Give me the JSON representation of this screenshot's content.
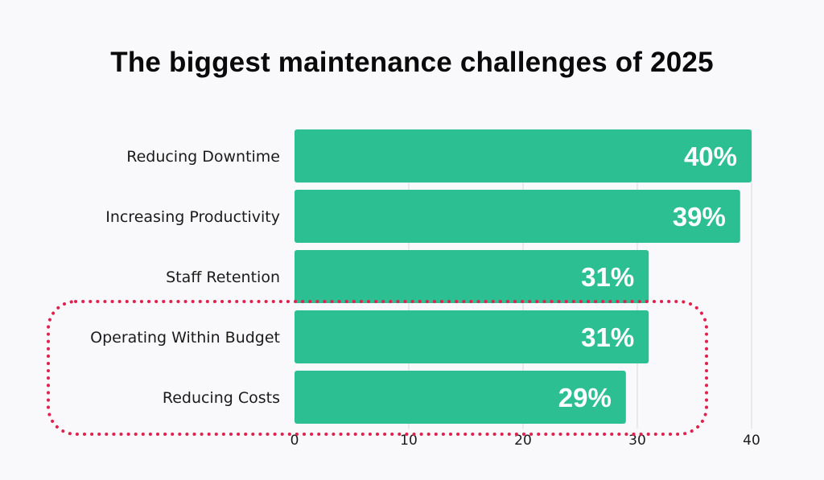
{
  "colors": {
    "background": "#f9f9fb",
    "bar": "#2bbf92",
    "grid": "#d9d9d9",
    "highlight_border": "#e0224e"
  },
  "chart_data": {
    "type": "bar",
    "orientation": "horizontal",
    "title": "The biggest maintenance challenges of 2025",
    "categories": [
      "Reducing Downtime",
      "Increasing Productivity",
      "Staff Retention",
      "Operating Within Budget",
      "Reducing Costs"
    ],
    "values": [
      40,
      39,
      31,
      31,
      29
    ],
    "value_labels": [
      "40%",
      "39%",
      "31%",
      "31%",
      "29%"
    ],
    "xlim": [
      0,
      40
    ],
    "xticks": [
      0,
      10,
      20,
      30,
      40
    ],
    "xtick_labels": [
      "0",
      "10",
      "20",
      "30",
      "40"
    ],
    "grid": "vertical",
    "xlabel": "",
    "ylabel": "",
    "highlighted_categories": [
      "Operating Within Budget",
      "Reducing Costs"
    ],
    "highlight_style": "dotted rounded outline"
  }
}
